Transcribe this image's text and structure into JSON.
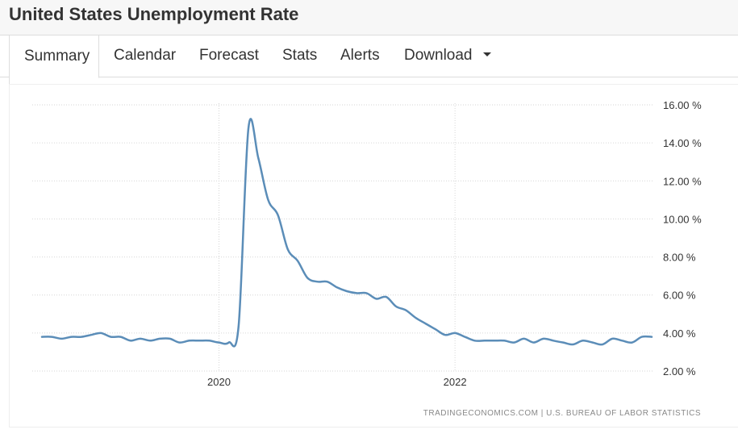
{
  "header": {
    "title": "United States Unemployment Rate"
  },
  "tabs": [
    {
      "label": "Summary",
      "active": true
    },
    {
      "label": "Calendar",
      "active": false
    },
    {
      "label": "Forecast",
      "active": false
    },
    {
      "label": "Stats",
      "active": false
    },
    {
      "label": "Alerts",
      "active": false
    },
    {
      "label": "Download",
      "active": false,
      "has_dropdown": true
    }
  ],
  "chart_data": {
    "type": "line",
    "title": "",
    "xlabel": "",
    "ylabel": "",
    "y_tick_labels": [
      "16.00 %",
      "14.00 %",
      "12.00 %",
      "10.00 %",
      "8.00 %",
      "6.00 %",
      "4.00 %",
      "2.00 %"
    ],
    "y_ticks": [
      16,
      14,
      12,
      10,
      8,
      6,
      4,
      2
    ],
    "ylim": [
      2,
      16
    ],
    "x_tick_labels": [
      "2020",
      "2022"
    ],
    "x_ticks": [
      "2020-01",
      "2022-01"
    ],
    "xlim": [
      "2018-07",
      "2023-09"
    ],
    "grid": true,
    "y_axis_position": "right",
    "line_color": "#5b8db8",
    "series": [
      {
        "x": [
          "2018-07",
          "2018-08",
          "2018-09",
          "2018-10",
          "2018-11",
          "2018-12",
          "2019-01",
          "2019-02",
          "2019-03",
          "2019-04",
          "2019-05",
          "2019-06",
          "2019-07",
          "2019-08",
          "2019-09",
          "2019-10",
          "2019-11",
          "2019-12",
          "2020-01",
          "2020-02",
          "2020-03",
          "2020-04",
          "2020-05",
          "2020-06",
          "2020-07",
          "2020-08",
          "2020-09",
          "2020-10",
          "2020-11",
          "2020-12",
          "2021-01",
          "2021-02",
          "2021-03",
          "2021-04",
          "2021-05",
          "2021-06",
          "2021-07",
          "2021-08",
          "2021-09",
          "2021-10",
          "2021-11",
          "2021-12",
          "2022-01",
          "2022-02",
          "2022-03",
          "2022-04",
          "2022-05",
          "2022-06",
          "2022-07",
          "2022-08",
          "2022-09",
          "2022-10",
          "2022-11",
          "2022-12",
          "2023-01",
          "2023-02",
          "2023-03",
          "2023-04",
          "2023-05",
          "2023-06",
          "2023-07",
          "2023-08",
          "2023-09"
        ],
        "values": [
          3.8,
          3.8,
          3.7,
          3.8,
          3.8,
          3.9,
          4.0,
          3.8,
          3.8,
          3.6,
          3.7,
          3.6,
          3.7,
          3.7,
          3.5,
          3.6,
          3.6,
          3.6,
          3.5,
          3.5,
          4.4,
          14.8,
          13.2,
          11.0,
          10.2,
          8.4,
          7.8,
          6.9,
          6.7,
          6.7,
          6.4,
          6.2,
          6.1,
          6.1,
          5.8,
          5.9,
          5.4,
          5.2,
          4.8,
          4.5,
          4.2,
          3.9,
          4.0,
          3.8,
          3.6,
          3.6,
          3.6,
          3.6,
          3.5,
          3.7,
          3.5,
          3.7,
          3.6,
          3.5,
          3.4,
          3.6,
          3.5,
          3.4,
          3.7,
          3.6,
          3.5,
          3.8,
          3.8
        ]
      }
    ]
  },
  "source": "TRADINGECONOMICS.COM  |  U.S. BUREAU OF LABOR STATISTICS"
}
